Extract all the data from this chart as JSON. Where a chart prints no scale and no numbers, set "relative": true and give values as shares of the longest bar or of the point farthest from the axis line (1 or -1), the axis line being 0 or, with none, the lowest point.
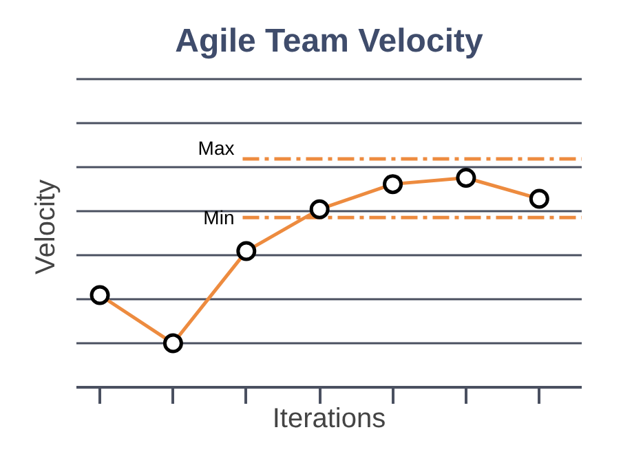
{
  "chart_data": {
    "type": "line",
    "title": "Agile Team Velocity",
    "xlabel": "Iterations",
    "ylabel": "Velocity",
    "relative": true,
    "categories": [
      null,
      null,
      null,
      null,
      null,
      null,
      null
    ],
    "series": [
      {
        "color": "#ed8b3f",
        "values": [
          0.44,
          0.21,
          0.65,
          0.85,
          0.97,
          1,
          0.9
        ]
      }
    ],
    "ref_lines": [
      {
        "axis": "y",
        "value": 1.09,
        "label": "Max",
        "color": "#ed8b3f",
        "line_style": "dashdot"
      },
      {
        "axis": "y",
        "value": 0.81,
        "label": "Min",
        "color": "#ed8b3f",
        "line_style": "dashdot"
      }
    ],
    "grid": "y",
    "marker": "circle",
    "line_style": "solid"
  }
}
